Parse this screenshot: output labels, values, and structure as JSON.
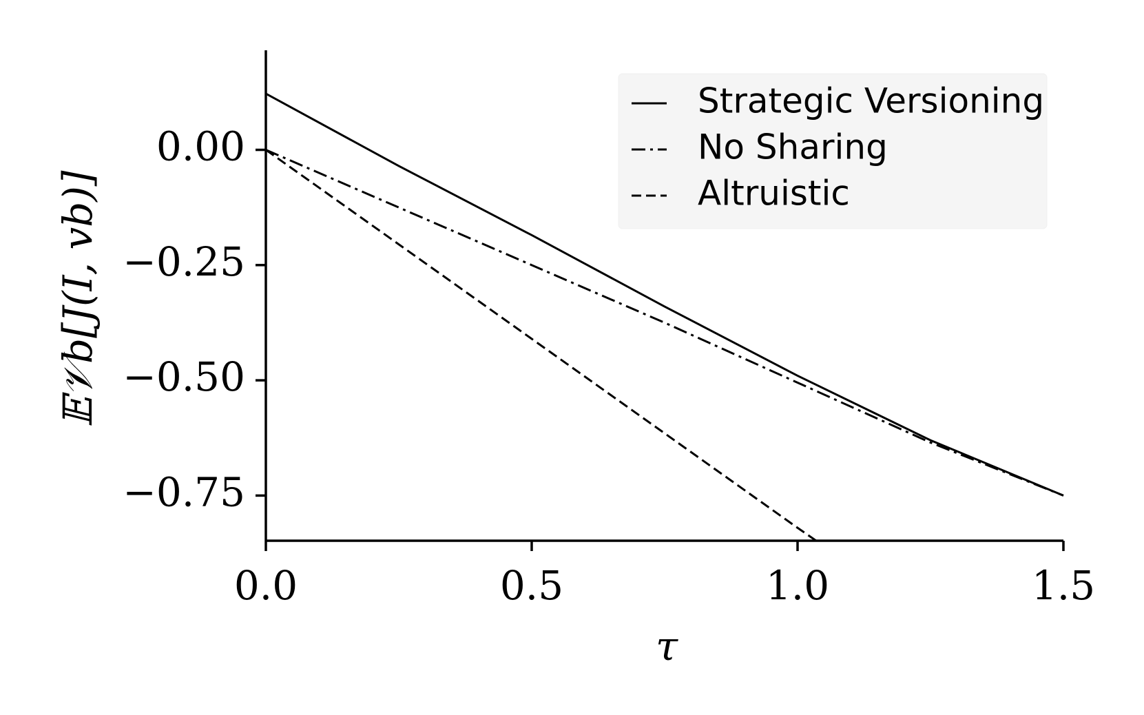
{
  "chart_data": {
    "type": "line",
    "xlabel": "τ",
    "ylabel": "𝔼𝒱b[J(I, vb)]",
    "xlim": [
      0,
      1.5
    ],
    "ylim": [
      -0.848,
      0.216
    ],
    "xticks": [
      {
        "value": 0,
        "label": "0.0"
      },
      0.5,
      {
        "value": 1,
        "label": "1.0"
      },
      1.5
    ],
    "yticks": [
      {
        "value": 0,
        "label": "0.00"
      },
      {
        "value": -0.25,
        "label": "−0.25"
      },
      {
        "value": -0.5,
        "label": "−0.50"
      },
      {
        "value": -0.75,
        "label": "−0.75"
      }
    ],
    "legend": "upper right",
    "series": [
      {
        "name": "Strategic Versioning",
        "color": "#000000",
        "dash": "solid",
        "x": [
          0,
          0.25,
          0.5,
          0.75,
          1.0,
          1.25,
          1.5
        ],
        "values": [
          0.122,
          -0.035,
          -0.185,
          -0.34,
          -0.49,
          -0.63,
          -0.75
        ]
      },
      {
        "name": "No Sharing",
        "color": "#000000",
        "dash": "dashdot",
        "x": [
          0,
          0.25,
          0.5,
          0.75,
          1.0,
          1.25,
          1.5
        ],
        "values": [
          0,
          -0.125,
          -0.25,
          -0.375,
          -0.505,
          -0.635,
          -0.75
        ]
      },
      {
        "name": "Altruistic",
        "color": "#000000",
        "dash": "dashed",
        "x": [
          0,
          0.25,
          0.5,
          0.75,
          1.0,
          1.035
        ],
        "values": [
          0,
          -0.205,
          -0.41,
          -0.615,
          -0.82,
          -0.848
        ]
      }
    ]
  }
}
